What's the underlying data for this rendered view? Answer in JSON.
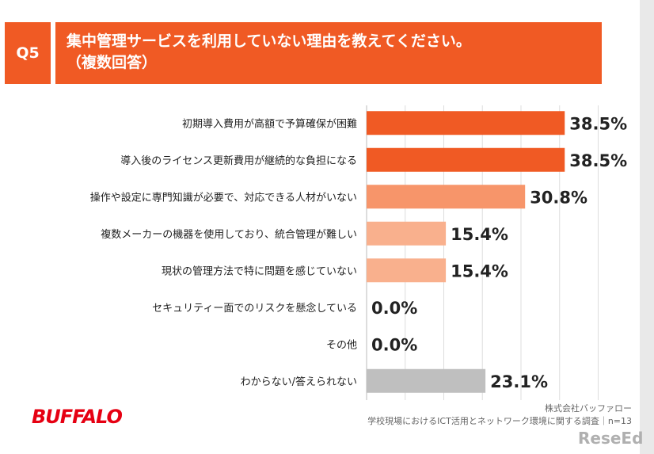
{
  "header": {
    "question_number": "Q5",
    "title_line1": "集中管理サービスを利用していない理由を教えてください。",
    "title_line2": "（複数回答）"
  },
  "footer": {
    "brand_logo": "BUFFALO",
    "source_line1": "株式会社バッファロー",
    "source_line2": "学校現場におけるICT活用とネットワーク環境に関する調査｜n=13",
    "watermark": "ReseEd"
  },
  "colors": {
    "accent": "#f05a24",
    "bar_high": "#f05a24",
    "bar_mid": "#f7956a",
    "bar_low": "#f9b08d",
    "bar_gray": "#bfbfbf"
  },
  "chart_data": {
    "type": "bar",
    "orientation": "horizontal",
    "categories": [
      "初期導入費用が高額で予算確保が困難",
      "導入後のライセンス更新費用が継続的な負担になる",
      "操作や設定に専門知識が必要で、対応できる人材がいない",
      "複数メーカーの機器を使用しており、統合管理が難しい",
      "現状の管理方法で特に問題を感じていない",
      "セキュリティー面でのリスクを懸念している",
      "その他",
      "わからない/答えられない"
    ],
    "values": [
      38.5,
      38.5,
      30.8,
      15.4,
      15.4,
      0.0,
      0.0,
      23.1
    ],
    "value_labels": [
      "38.5%",
      "38.5%",
      "30.8%",
      "15.4%",
      "15.4%",
      "0.0%",
      "0.0%",
      "23.1%"
    ],
    "bar_colors": [
      "#f05a24",
      "#f05a24",
      "#f7956a",
      "#f9b08d",
      "#f9b08d",
      "#f9b08d",
      "#f9b08d",
      "#bfbfbf"
    ],
    "xlim": [
      0,
      45
    ],
    "grid": true
  }
}
